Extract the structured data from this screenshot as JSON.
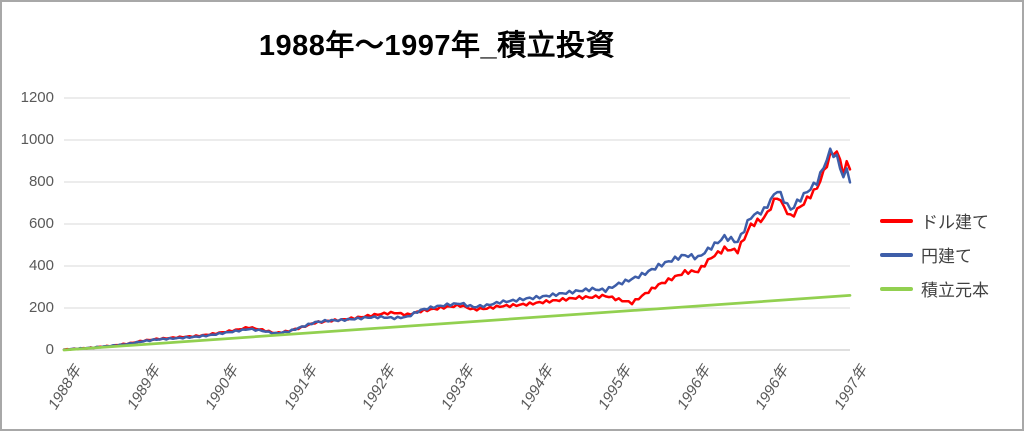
{
  "chart_data": {
    "type": "line",
    "title": "1988年〜1997年_積立投資",
    "xlabel": "",
    "ylabel": "",
    "ylim": [
      0,
      1200
    ],
    "y_ticks": [
      0,
      200,
      400,
      600,
      800,
      1000,
      1200
    ],
    "x_tick_labels": [
      "1988年",
      "1989年",
      "1990年",
      "1991年",
      "1992年",
      "1993年",
      "1994年",
      "1995年",
      "1996年",
      "1996年",
      "1997年"
    ],
    "x_unit": "months_since_jan_1988",
    "x_range": [
      0,
      119
    ],
    "grid": true,
    "legend_position": "right-outside",
    "axis_label_color": "#595959",
    "gridline_color": "#d9d9d9",
    "series": [
      {
        "name": "ドル建て",
        "color": "#ff0000",
        "x": [
          0,
          2,
          4,
          6,
          8,
          10,
          12,
          14,
          16,
          18,
          20,
          22,
          24,
          26,
          28,
          30,
          32,
          34,
          36,
          38,
          40,
          42,
          44,
          46,
          48,
          50,
          52,
          54,
          56,
          58,
          60,
          62,
          64,
          66,
          68,
          70,
          72,
          74,
          76,
          78,
          80,
          82,
          84,
          86,
          88,
          90,
          92,
          94,
          96,
          98,
          100,
          102,
          104,
          106,
          108,
          110,
          112,
          114,
          115,
          116,
          117,
          118,
          118.5,
          119
        ],
        "values": [
          2,
          6,
          10,
          16,
          23,
          32,
          44,
          52,
          57,
          62,
          66,
          74,
          84,
          95,
          108,
          96,
          80,
          90,
          108,
          130,
          138,
          144,
          152,
          162,
          172,
          178,
          168,
          185,
          195,
          205,
          212,
          193,
          198,
          208,
          212,
          218,
          226,
          234,
          242,
          250,
          252,
          258,
          240,
          224,
          268,
          310,
          340,
          371,
          375,
          440,
          482,
          472,
          595,
          628,
          732,
          632,
          700,
          772,
          845,
          925,
          948,
          846,
          886,
          860
        ]
      },
      {
        "name": "円建て",
        "color": "#3e5ea9",
        "x": [
          0,
          2,
          4,
          6,
          8,
          10,
          12,
          14,
          16,
          18,
          20,
          22,
          24,
          26,
          28,
          30,
          32,
          34,
          36,
          38,
          40,
          42,
          44,
          46,
          48,
          50,
          52,
          54,
          56,
          58,
          60,
          62,
          64,
          66,
          68,
          70,
          72,
          74,
          76,
          78,
          80,
          82,
          84,
          86,
          88,
          90,
          92,
          94,
          96,
          98,
          100,
          102,
          104,
          106,
          108,
          110,
          112,
          114,
          115,
          116,
          117,
          118,
          118.5,
          119
        ],
        "values": [
          2,
          6,
          10,
          16,
          22,
          30,
          42,
          50,
          54,
          58,
          63,
          70,
          80,
          90,
          100,
          92,
          78,
          88,
          110,
          132,
          140,
          142,
          148,
          155,
          157,
          152,
          158,
          190,
          205,
          215,
          222,
          205,
          212,
          228,
          235,
          245,
          252,
          262,
          272,
          282,
          290,
          285,
          315,
          338,
          365,
          400,
          428,
          452,
          440,
          490,
          538,
          515,
          635,
          665,
          762,
          668,
          738,
          800,
          870,
          948,
          918,
          824,
          856,
          798
        ]
      },
      {
        "name": "積立元本",
        "color": "#92d050",
        "x": [
          0,
          119
        ],
        "values": [
          0,
          260
        ]
      }
    ]
  }
}
